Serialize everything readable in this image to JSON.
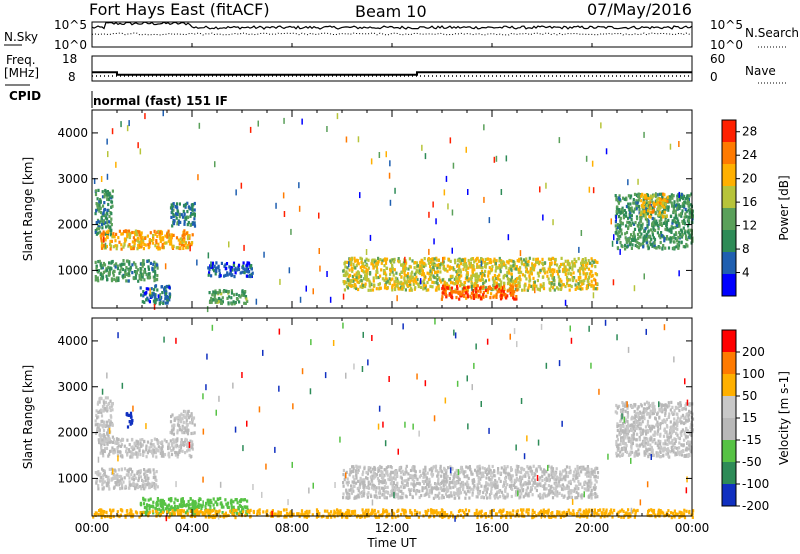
{
  "header": {
    "station": "Fort Hays East (fitACF)",
    "beam": "Beam 10",
    "date": "07/May/2016"
  },
  "noise_panel": {
    "left_label": "N.Sky",
    "right_label": "N.Search",
    "left_ticks": [
      "10^5",
      "10^0"
    ],
    "right_ticks": [
      "10^5",
      "10^0"
    ]
  },
  "freq_panel": {
    "left_label_line1": "Freq.",
    "left_label_line2": "[MHz]",
    "right_label": "Nave",
    "left_ticks": [
      "18",
      "8"
    ],
    "right_ticks": [
      "60",
      "0"
    ],
    "freq_steps": [
      {
        "from_hour": 0,
        "to_hour": 1,
        "mhz": 11.5
      },
      {
        "from_hour": 1,
        "to_hour": 13,
        "mhz": 10.5
      },
      {
        "from_hour": 13,
        "to_hour": 24,
        "mhz": 11.5
      }
    ],
    "nave_level": 12
  },
  "cpid": {
    "label": "CPID",
    "value": "normal (fast) 151 IF"
  },
  "chart_data": [
    {
      "type": "heatmap",
      "name": "power",
      "xlabel": "",
      "ylabel": "Slant Range [km]",
      "yticks": [
        "1000",
        "2000",
        "3000",
        "4000"
      ],
      "ylim": [
        180,
        4500
      ],
      "xlim": [
        0,
        24
      ],
      "colorbar": {
        "label": "Power [dB]",
        "ticks": [
          "4",
          "8",
          "12",
          "16",
          "20",
          "24",
          "28"
        ],
        "range": [
          0,
          30
        ],
        "colors": [
          "#0000ff",
          "#1f5fb0",
          "#2e8b57",
          "#5aa05a",
          "#b7c43a",
          "#ffb000",
          "#ff7a00",
          "#ff2000"
        ]
      },
      "regions": [
        {
          "t": [
            0.1,
            0.8
          ],
          "r": [
            1800,
            2800
          ],
          "level": 10
        },
        {
          "t": [
            0.3,
            4.0
          ],
          "r": [
            1500,
            1900
          ],
          "level": 21
        },
        {
          "t": [
            0.1,
            2.6
          ],
          "r": [
            800,
            1250
          ],
          "level": 11
        },
        {
          "t": [
            3.1,
            4.1
          ],
          "r": [
            2000,
            2500
          ],
          "level": 8
        },
        {
          "t": [
            1.9,
            3.1
          ],
          "r": [
            300,
            700
          ],
          "level": 6
        },
        {
          "t": [
            4.6,
            6.4
          ],
          "r": [
            900,
            1200
          ],
          "level": 5
        },
        {
          "t": [
            4.6,
            6.2
          ],
          "r": [
            300,
            600
          ],
          "level": 12
        },
        {
          "t": [
            10.0,
            20.2
          ],
          "r": [
            600,
            1300
          ],
          "level": 18
        },
        {
          "t": [
            13.9,
            17.0
          ],
          "r": [
            400,
            700
          ],
          "level": 26
        },
        {
          "t": [
            20.9,
            24.0
          ],
          "r": [
            1500,
            2700
          ],
          "level": 11
        },
        {
          "t": [
            21.9,
            23.0
          ],
          "r": [
            2200,
            2700
          ],
          "level": 20
        }
      ]
    },
    {
      "type": "heatmap",
      "name": "velocity",
      "xlabel": "Time UT",
      "ylabel": "Slant Range [km]",
      "yticks": [
        "1000",
        "2000",
        "3000",
        "4000"
      ],
      "ylim": [
        180,
        4500
      ],
      "xlim": [
        0,
        24
      ],
      "xticks": [
        "00:00",
        "04:00",
        "08:00",
        "12:00",
        "16:00",
        "20:00",
        "00:00"
      ],
      "colorbar": {
        "label": "Velocity [m s-1]",
        "ticks": [
          "200",
          "100",
          "50",
          "15",
          "-15",
          "-50",
          "-100",
          "-200"
        ],
        "colors": [
          "#1030c0",
          "#2d8b57",
          "#56c244",
          "#b8b8b8",
          "#c8c8c8",
          "#ffb000",
          "#ff7a00",
          "#ff0000"
        ]
      },
      "regions": [
        {
          "t": [
            0.1,
            0.8
          ],
          "r": [
            1800,
            2800
          ],
          "v": 0
        },
        {
          "t": [
            0.3,
            4.0
          ],
          "r": [
            1500,
            1900
          ],
          "v": 0
        },
        {
          "t": [
            0.1,
            2.6
          ],
          "r": [
            800,
            1250
          ],
          "v": 0
        },
        {
          "t": [
            1.3,
            1.6
          ],
          "r": [
            2150,
            2500
          ],
          "v": 210
        },
        {
          "t": [
            3.1,
            4.1
          ],
          "r": [
            2000,
            2500
          ],
          "v": -20
        },
        {
          "t": [
            1.9,
            6.2
          ],
          "r": [
            250,
            600
          ],
          "v": 40
        },
        {
          "t": [
            10.0,
            20.2
          ],
          "r": [
            600,
            1300
          ],
          "v": 0
        },
        {
          "t": [
            20.9,
            24.0
          ],
          "r": [
            1500,
            2700
          ],
          "v": 0
        },
        {
          "t": [
            0.0,
            24.0
          ],
          "r": [
            180,
            350
          ],
          "v": -40
        }
      ]
    }
  ]
}
